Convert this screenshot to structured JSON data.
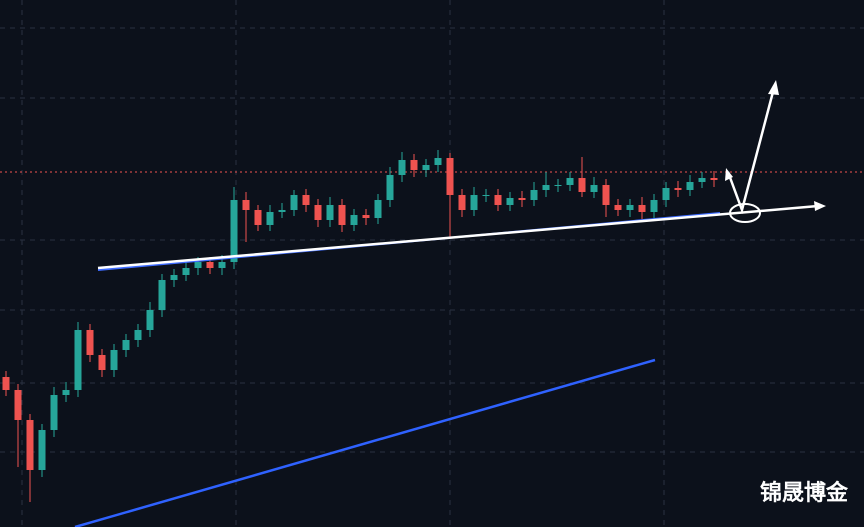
{
  "chart_data": {
    "type": "candlestick",
    "categories": [
      null,
      null,
      null,
      null,
      null,
      null,
      null,
      null,
      null,
      null,
      null,
      null,
      null,
      null,
      null,
      null,
      null,
      null,
      null,
      null,
      null,
      null,
      null,
      null,
      null,
      null,
      null,
      null,
      null,
      null,
      null,
      null,
      null,
      null,
      null,
      null,
      null,
      null,
      null,
      null,
      null,
      null,
      null,
      null,
      null,
      null,
      null,
      null,
      null,
      null,
      null,
      null,
      null,
      null,
      null,
      null,
      null,
      null,
      null,
      null
    ],
    "open": [
      150,
      137,
      107,
      57,
      97,
      132,
      137,
      197,
      172,
      157,
      177,
      187,
      197,
      217,
      247,
      252,
      259,
      265,
      259,
      265,
      327,
      317,
      302,
      315,
      317,
      332,
      322,
      307,
      322,
      302,
      312,
      309,
      327,
      352,
      367,
      357,
      362,
      369,
      332,
      317,
      332,
      332,
      322,
      329,
      327,
      337,
      342,
      342,
      349,
      335,
      342,
      322,
      317,
      322,
      315,
      327,
      339,
      337,
      345,
      349
    ],
    "high": [
      156,
      143,
      113,
      103,
      140,
      145,
      205,
      203,
      178,
      183,
      193,
      203,
      225,
      253,
      258,
      265,
      270,
      270,
      272,
      340,
      335,
      322,
      322,
      324,
      337,
      338,
      328,
      330,
      328,
      318,
      318,
      333,
      360,
      375,
      373,
      368,
      377,
      374,
      338,
      340,
      338,
      338,
      335,
      336,
      345,
      355,
      348,
      355,
      370,
      350,
      348,
      328,
      328,
      330,
      333,
      345,
      346,
      352,
      355,
      356
    ],
    "low": [
      131,
      60,
      25,
      50,
      90,
      125,
      130,
      165,
      150,
      150,
      170,
      180,
      190,
      210,
      240,
      246,
      252,
      253,
      252,
      258,
      285,
      296,
      296,
      309,
      311,
      315,
      300,
      300,
      295,
      296,
      302,
      303,
      320,
      345,
      350,
      350,
      355,
      290,
      310,
      311,
      325,
      316,
      316,
      320,
      321,
      330,
      335,
      336,
      330,
      329,
      310,
      311,
      310,
      308,
      309,
      320,
      330,
      331,
      339,
      340
    ],
    "close": [
      137,
      107,
      57,
      97,
      132,
      137,
      197,
      172,
      157,
      177,
      187,
      197,
      217,
      247,
      252,
      259,
      265,
      259,
      265,
      327,
      317,
      302,
      315,
      317,
      332,
      322,
      307,
      322,
      302,
      312,
      309,
      327,
      352,
      367,
      357,
      362,
      369,
      332,
      317,
      332,
      332,
      322,
      329,
      327,
      337,
      342,
      342,
      349,
      335,
      342,
      322,
      317,
      322,
      315,
      327,
      339,
      337,
      345,
      349,
      347
    ],
    "up_color": "#26a69a",
    "down_color": "#ef5350",
    "ylim": [
      0,
      527
    ],
    "watermark": "锦晟博金"
  }
}
